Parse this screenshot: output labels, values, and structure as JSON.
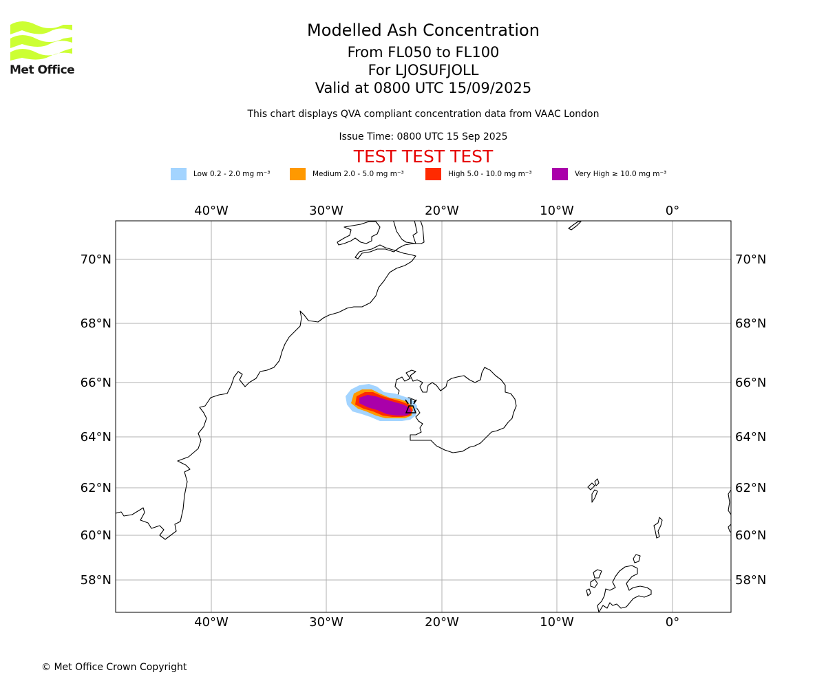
{
  "header": {
    "title": "Modelled Ash Concentration",
    "subtitle_1": "From FL050 to FL100",
    "subtitle_2": "For LJOSUFJOLL",
    "subtitle_3": "Valid at 0800 UTC 15/09/2025",
    "note": "This chart displays QVA compliant concentration data from VAAC London",
    "issue_time": "Issue Time: 0800 UTC 15 Sep 2025",
    "test_banner": "TEST TEST TEST"
  },
  "logo": {
    "text": "Met Office",
    "color": "#ccff33"
  },
  "legend": [
    {
      "label": "Low 0.2 - 2.0 mg m⁻³",
      "color": "#a3d4ff"
    },
    {
      "label": "Medium 2.0 - 5.0 mg m⁻³",
      "color": "#ff9900"
    },
    {
      "label": "High 5.0 - 10.0 mg m⁻³",
      "color": "#ff2a00"
    },
    {
      "label": "Very High ≥ 10.0 mg m⁻³",
      "color": "#aa00aa"
    }
  ],
  "map": {
    "longitude_ticks": [
      "40°W",
      "30°W",
      "20°W",
      "10°W",
      "0°"
    ],
    "latitude_ticks": [
      "70°N",
      "68°N",
      "66°N",
      "64°N",
      "62°N",
      "60°N",
      "58°N"
    ],
    "volcano_marker": "volcano-icon"
  },
  "footer": {
    "copyright": "© Met Office Crown Copyright"
  }
}
